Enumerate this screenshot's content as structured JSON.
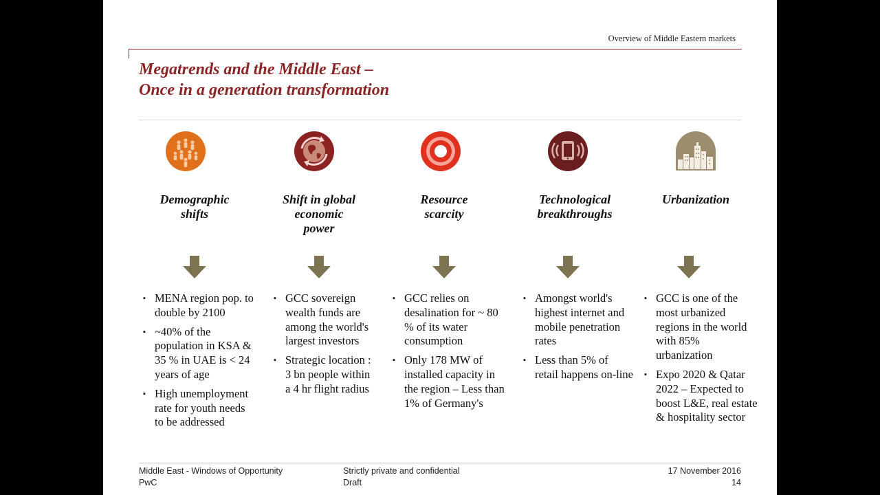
{
  "header": {
    "section_label": "Overview of Middle Eastern markets"
  },
  "title": {
    "line1": "Megatrends and the Middle East –",
    "line2": "Once in a generation transformation"
  },
  "columns": [
    {
      "icon": "people-group-icon",
      "heading": [
        "Demographic",
        "shifts"
      ],
      "bullets": [
        "MENA region pop. to double by 2100",
        "~40% of the population in KSA & 35 % in UAE is < 24 years of age",
        "High unemployment rate for youth needs to be addressed"
      ]
    },
    {
      "icon": "globe-arrows-icon",
      "heading": [
        "Shift in global",
        "economic",
        "power"
      ],
      "bullets": [
        "GCC sovereign wealth funds are among the world's largest investors",
        "Strategic location : 3 bn people within a 4 hr flight radius"
      ]
    },
    {
      "icon": "concentric-circles-icon",
      "heading": [
        "Resource",
        "scarcity"
      ],
      "bullets": [
        "GCC relies on desalination for ~ 80 % of its water consumption",
        "Only 178 MW of installed capacity in the region – Less than 1% of Germany's"
      ]
    },
    {
      "icon": "tablet-signal-icon",
      "heading": [
        "Technological",
        "breakthroughs"
      ],
      "bullets": [
        "Amongst world's highest internet and mobile penetration rates",
        "Less than 5% of retail happens on-line"
      ]
    },
    {
      "icon": "city-skyline-icon",
      "heading": [
        "Urbanization"
      ],
      "bullets": [
        "GCC is one of the most urbanized regions in the world with 85% urbanization",
        "Expo 2020 & Qatar 2022 – Expected to boost L&E, real estate & hospitality sector"
      ]
    }
  ],
  "colors": {
    "title": "#8c2323",
    "arrow": "#7d7350",
    "orange": "#e0701c",
    "red": "#e0301e",
    "dark_red": "#8c2323",
    "taupe": "#9a8c6c"
  },
  "footer": {
    "left_line1": "Middle East - Windows of Opportunity",
    "left_line2": "PwC",
    "center_line1": "Strictly private and confidential",
    "center_line2": "Draft",
    "date": "17 November 2016",
    "page": "14"
  }
}
